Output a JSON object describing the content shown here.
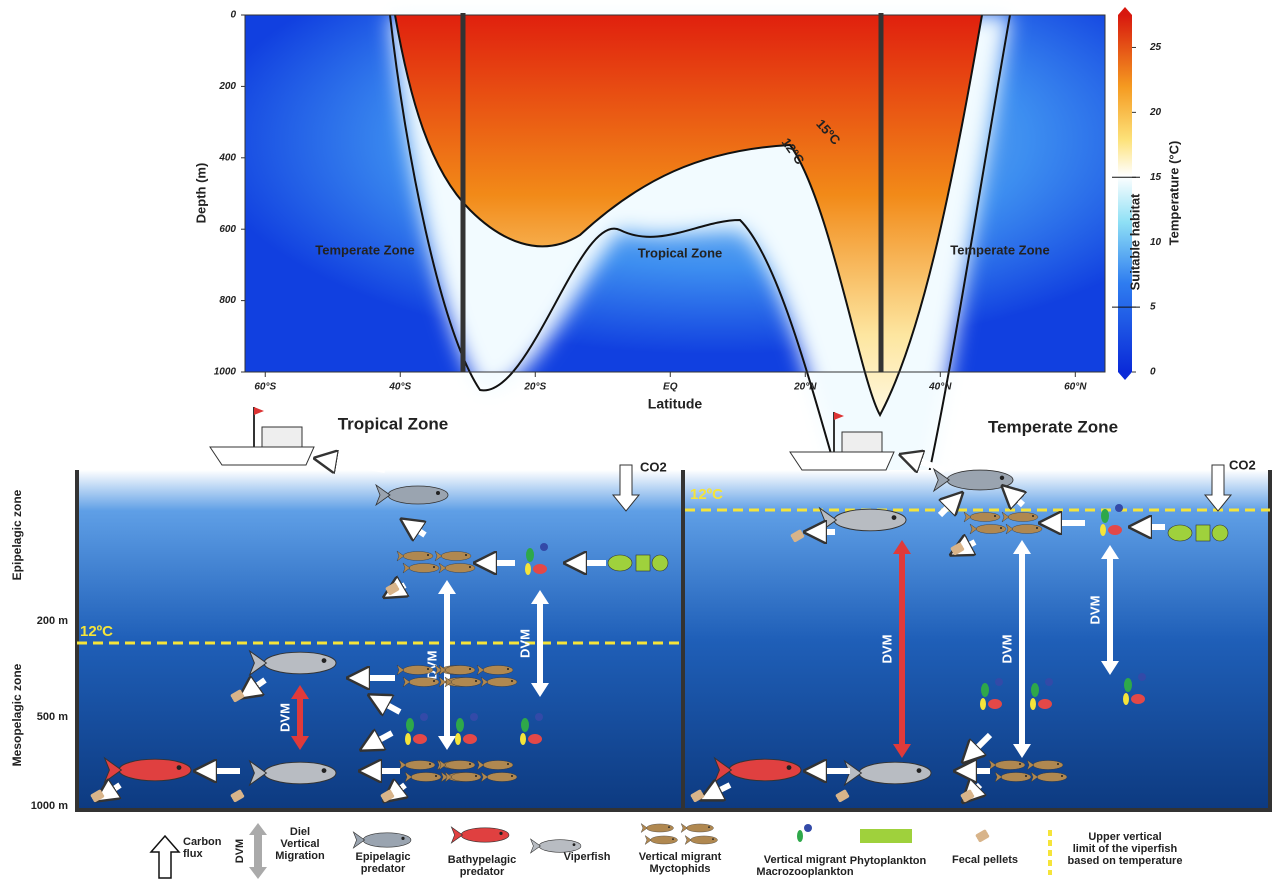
{
  "heatmap": {
    "ylabel": "Depth (m)",
    "xlabel": "Latitude",
    "ylim": [
      0,
      1000
    ],
    "yticks": [
      0,
      200,
      400,
      600,
      800,
      1000
    ],
    "xlim": [
      -63,
      64.4
    ],
    "xticks": [
      {
        "value": -60,
        "label": "60°S"
      },
      {
        "value": -40,
        "label": "40°S"
      },
      {
        "value": -20,
        "label": "20°S"
      },
      {
        "value": 0,
        "label": "EQ"
      },
      {
        "value": 20,
        "label": "20°N"
      },
      {
        "value": 40,
        "label": "40°N"
      },
      {
        "value": 60,
        "label": "60°N"
      }
    ],
    "zone_labels": [
      "Temperate Zone",
      "Tropical Zone",
      "Temperate Zone"
    ],
    "contour_labels": [
      "15ºC",
      "12ºC"
    ],
    "colorbar": {
      "label": "Temperature (°C)",
      "habitat_label": "Suitable habitat",
      "clim": [
        0,
        27.5
      ],
      "ticks": [
        0,
        5,
        10,
        15,
        20,
        25
      ]
    }
  },
  "depth_axis": {
    "zones": [
      "Epipelagic zone",
      "Mesopelagic zone"
    ],
    "ticks": [
      "200 m",
      "500 m",
      "1000 m"
    ]
  },
  "panels": [
    {
      "title": "Tropical Zone",
      "co2": "CO2",
      "threshold": "12ºC",
      "dvm": [
        "DVM",
        "DVM",
        "DVM"
      ]
    },
    {
      "title": "Temperate Zone",
      "co2": "CO2",
      "threshold": "12ºC",
      "dvm": [
        "DVM",
        "DVM",
        "DVM"
      ]
    }
  ],
  "legend": [
    {
      "label": [
        "Carbon",
        "flux"
      ]
    },
    {
      "symbol": "DVM",
      "label": [
        "Diel",
        "Vertical",
        "Migration"
      ]
    },
    {
      "label": [
        "Epipelagic",
        "predator"
      ]
    },
    {
      "label": [
        "Bathypelagic",
        "predator"
      ]
    },
    {
      "label": [
        "Viperfish"
      ]
    },
    {
      "label": [
        "Vertical migrant",
        "Myctophids"
      ]
    },
    {
      "label": [
        "Vertical migrant",
        "Macrozooplankton"
      ]
    },
    {
      "label": [
        "Phytoplankton"
      ]
    },
    {
      "label": [
        "Fecal pellets"
      ]
    },
    {
      "label": [
        "Upper vertical",
        "limit of the viperfish",
        "based on temperature"
      ]
    }
  ]
}
